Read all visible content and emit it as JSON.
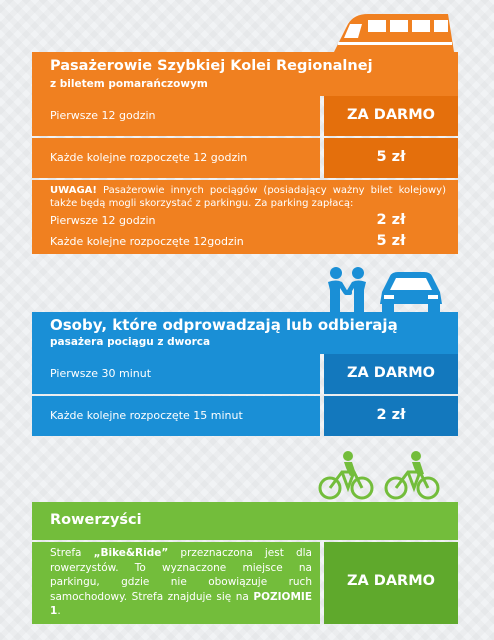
{
  "section1": {
    "title": "Pasażerowie Szybkiej Kolei Regionalnej",
    "subtitle": "z biletem pomarańczowym",
    "rows": [
      {
        "label": "Pierwsze 12 godzin",
        "value": "ZA DARMO"
      },
      {
        "label": "Każde kolejne rozpoczęte 12 godzin",
        "value": "5 zł"
      }
    ],
    "note_bold": "UWAGA!",
    "note_text": " Pasażerowie innych pociągów (posiadający ważny bilet kolejowy) także będą mogli skorzystać z parkingu. Za parking zapłacą:",
    "extra_rows": [
      {
        "label": "Pierwsze 12 godzin",
        "value": "2 zł"
      },
      {
        "label": "Każde kolejne rozpoczęte 12godzin",
        "value": "5 zł"
      }
    ],
    "icon": "train-icon"
  },
  "section2": {
    "title": "Osoby, które odprowadzają lub odbierają",
    "subtitle": "pasażera pociągu z dworca",
    "rows": [
      {
        "label": "Pierwsze 30 minut",
        "value": "ZA DARMO"
      },
      {
        "label": "Każde kolejne rozpoczęte 15 minut",
        "value": "2 zł"
      }
    ],
    "icons": [
      "handshake-icon",
      "car-icon"
    ]
  },
  "section3": {
    "title": "Rowerzyści",
    "desc_pre": "Strefa ",
    "desc_bold1": "„Bike&Ride”",
    "desc_mid": " przeznaczona jest dla rowerzystów. To wyznaczone miejsce na parkingu, gdzie nie obowiązuje ruch samochodowy. Strefa znajduje się na ",
    "desc_bold2": "POZIOMIE 1",
    "desc_end": ".",
    "value": "ZA DARMO",
    "icon": "cyclists-icon"
  },
  "colors": {
    "orange": "#f08020",
    "blue": "#1a8fd6",
    "green": "#73bd3b"
  }
}
